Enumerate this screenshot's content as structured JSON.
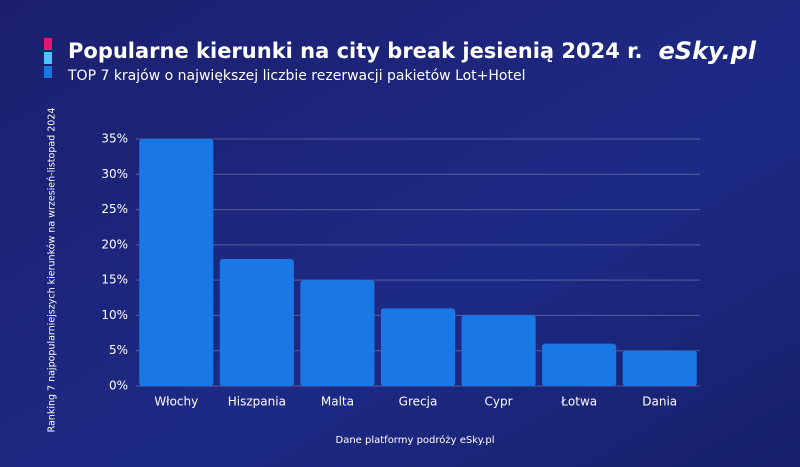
{
  "chart_data": {
    "type": "bar",
    "title": "Popularne kierunki na city break jesienią 2024 r.",
    "subtitle": "TOP 7 krajów o największej liczbie rezerwacji pakietów Lot+Hotel",
    "logo": "eSky.pl",
    "y_label": "Ranking 7 najpopularniejszych kierunków na wrzesień-listopad 2024",
    "source": "Dane platformy podróży eSky.pl",
    "categories": [
      "Włochy",
      "Hiszpania",
      "Malta",
      "Grecja",
      "Cypr",
      "Łotwa",
      "Dania"
    ],
    "values": [
      35,
      18,
      15,
      11,
      10,
      6,
      5
    ],
    "color": "#1a78e6",
    "ylim": [
      0,
      35
    ],
    "yticks": [
      {
        "value": 0,
        "label": "0%"
      },
      {
        "value": 5,
        "label": "5%"
      },
      {
        "value": 10,
        "label": "10%"
      },
      {
        "value": 15,
        "label": "15%"
      },
      {
        "value": 20,
        "label": "20%"
      },
      {
        "value": 25,
        "label": "25%"
      },
      {
        "value": 30,
        "label": "30%"
      },
      {
        "value": 35,
        "label": "35%"
      }
    ],
    "grid": true
  }
}
